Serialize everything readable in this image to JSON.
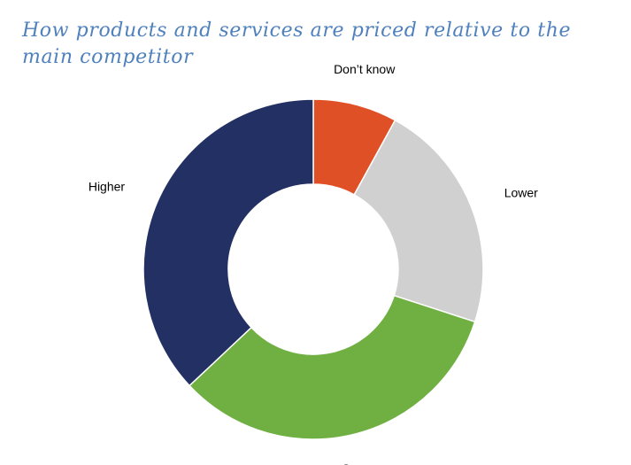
{
  "chart_data": {
    "type": "pie",
    "style": "donut",
    "title": "How products and services are priced relative to the main competitor",
    "legend": "none",
    "categories": [
      "Don’t know",
      "Lower",
      "Same",
      "Higher"
    ],
    "values": [
      8,
      22,
      33,
      37
    ],
    "colors": [
      "#e05026",
      "#d0d0d0",
      "#70b043",
      "#233063"
    ]
  }
}
